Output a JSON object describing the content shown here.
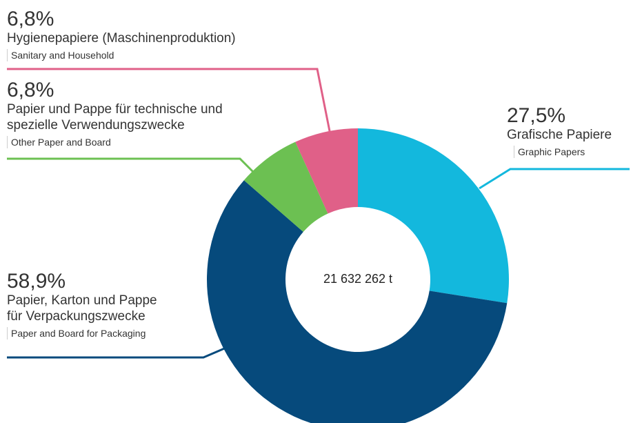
{
  "chart_data": {
    "type": "donut",
    "categories": [
      "Grafische Papiere",
      "Papier, Karton und Pappe für Verpackungszwecke",
      "Papier und Pappe für technische und spezielle Verwendungszwecke",
      "Hygienepapiere (Maschinenproduktion)"
    ],
    "subcategories": [
      "Graphic Papers",
      "Paper and Board for Packaging",
      "Other Paper and Board",
      "Sanitary and Household"
    ],
    "values": [
      27.5,
      58.9,
      6.8,
      6.8
    ],
    "value_labels": [
      "27,5%",
      "58,9%",
      "6,8%",
      "6,8%"
    ],
    "colors": [
      "#13b8dd",
      "#064a7c",
      "#6cc052",
      "#e06088"
    ],
    "center_label": "21 632 262 t"
  }
}
